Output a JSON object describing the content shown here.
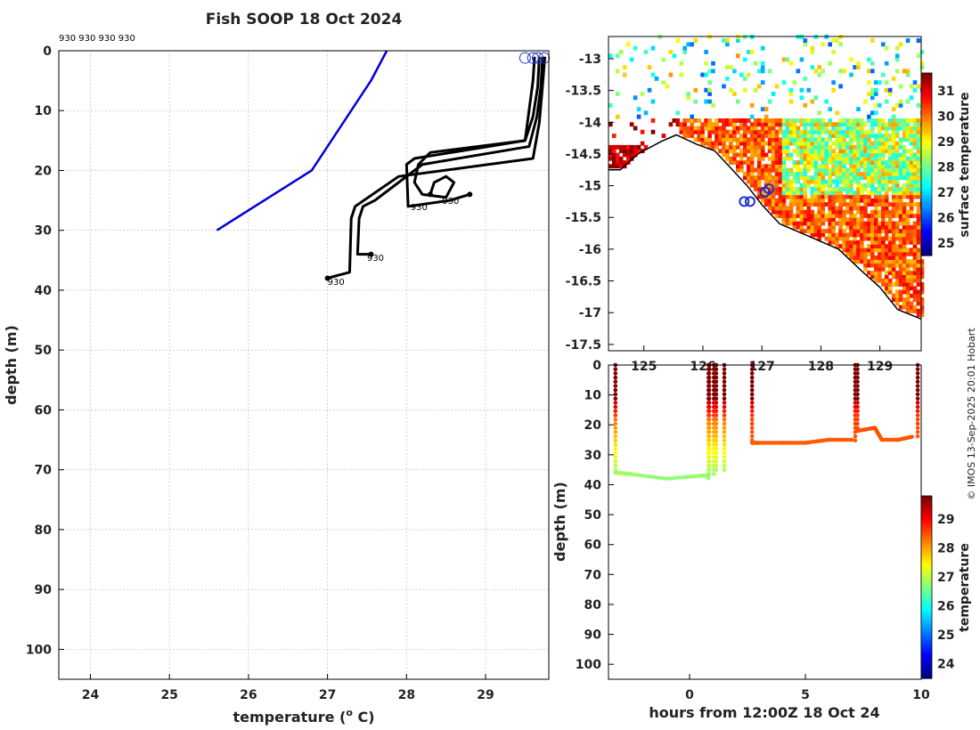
{
  "title": "Fish SOOP 18 Oct 2024",
  "credit": "© IMOS 13-Sep-2025 20:01 Hobart",
  "profile_panel": {
    "profile_ids": "930 930 930 930",
    "xlabel": "temperature (",
    "xlabel_sup": "o",
    "xlabel_end": " C)",
    "ylabel": "depth (m)"
  },
  "map_panel": {
    "colorbar_label": "surface temperature"
  },
  "section_panel": {
    "xlabel": "hours from 12:00Z 18 Oct 24",
    "ylabel": "depth (m)",
    "colorbar_label": "temperature"
  },
  "chart_data": [
    {
      "type": "line",
      "name": "temperature profiles",
      "xlim": [
        23.6,
        29.8
      ],
      "ylim": [
        0,
        105
      ],
      "y_reversed": true,
      "xticks": [
        24,
        25,
        26,
        27,
        28,
        29
      ],
      "yticks": [
        0,
        10,
        20,
        30,
        40,
        50,
        60,
        70,
        80,
        90,
        100
      ],
      "grid": true,
      "series": [
        {
          "name": "climatology",
          "color": "#0000dd",
          "x": [
            27.75,
            27.55,
            27.3,
            26.8,
            25.6
          ],
          "y": [
            0,
            5,
            10,
            20,
            30
          ]
        },
        {
          "name": "profile 1",
          "color": "#000000",
          "x": [
            29.62,
            29.6,
            29.55,
            29.5,
            28.3,
            28.15,
            28.1,
            28.2,
            28.5,
            28.6,
            28.5,
            28.35,
            28.3
          ],
          "y": [
            1,
            5,
            10,
            15,
            17,
            19,
            22,
            24,
            24.5,
            22,
            21,
            22,
            24
          ]
        },
        {
          "name": "profile 2",
          "color": "#000000",
          "x": [
            29.68,
            29.66,
            29.6,
            29.5,
            28.1,
            28.0,
            28.02,
            28.55,
            28.8
          ],
          "y": [
            1,
            6,
            11,
            15,
            18,
            19,
            26,
            25,
            24
          ]
        },
        {
          "name": "profile 3",
          "color": "#000000",
          "x": [
            29.72,
            29.7,
            29.65,
            29.55,
            28.2,
            27.6,
            27.45,
            27.4,
            27.38,
            27.55
          ],
          "y": [
            1,
            6,
            11,
            16,
            19,
            25,
            26,
            28,
            34,
            34
          ]
        },
        {
          "name": "profile 4",
          "color": "#000000",
          "x": [
            29.75,
            29.72,
            29.68,
            29.6,
            27.9,
            27.35,
            27.3,
            27.28,
            27.0
          ],
          "y": [
            1,
            6,
            12,
            18,
            21,
            26,
            28,
            37,
            38
          ]
        }
      ],
      "annotations": [
        {
          "text": "930",
          "x": 28.05,
          "y": 26
        },
        {
          "text": "930",
          "x": 28.45,
          "y": 25
        },
        {
          "text": "930",
          "x": 27.5,
          "y": 34.5
        },
        {
          "text": "930",
          "x": 27.0,
          "y": 38.5
        }
      ]
    },
    {
      "type": "heatmap",
      "name": "surface temperature map",
      "xlim": [
        124.4,
        129.7
      ],
      "ylim": [
        -17.6,
        -12.65
      ],
      "xticks": [
        125,
        126,
        127,
        128,
        129
      ],
      "yticks": [
        -13,
        -13.5,
        -14,
        -14.5,
        -15,
        -15.5,
        -16,
        -16.5,
        -17,
        -17.5
      ],
      "colorbar": {
        "label": "surface temperature",
        "range": [
          24.5,
          31.7
        ],
        "ticks": [
          25,
          26,
          27,
          28,
          29,
          30,
          31
        ]
      },
      "track": [
        [
          126.8,
          -15.25
        ],
        [
          126.7,
          -15.25
        ],
        [
          127.05,
          -15.1
        ],
        [
          127.12,
          -15.05
        ]
      ]
    },
    {
      "type": "scatter",
      "name": "temperature section",
      "xlim": [
        -3.5,
        10
      ],
      "ylim": [
        0,
        105
      ],
      "y_reversed": true,
      "xticks": [
        0,
        5,
        10
      ],
      "yticks": [
        0,
        10,
        20,
        30,
        40,
        50,
        60,
        70,
        80,
        90,
        100
      ],
      "colorbar": {
        "label": "temperature",
        "range": [
          23.5,
          29.8
        ],
        "ticks": [
          24,
          25,
          26,
          27,
          28,
          29
        ]
      },
      "casts": [
        {
          "x": [
            -3.2,
            -3.1,
            -2.5,
            -1.0,
            0.5,
            0.8,
            0.82
          ],
          "depth_bottom": [
            36,
            36,
            36.5,
            38,
            37,
            37,
            0
          ]
        },
        {
          "x": [
            0.85,
            1.05
          ],
          "depth_bottom": [
            37,
            0
          ]
        },
        {
          "x": [
            1.15,
            1.5
          ],
          "depth_bottom": [
            35,
            0
          ]
        },
        {
          "x": [
            2.7,
            3.0,
            4.0,
            5.0,
            6.0,
            7.0,
            7.15
          ],
          "depth_bottom": [
            26,
            26,
            26,
            26,
            25,
            25,
            0
          ]
        },
        {
          "x": [
            7.25,
            8.0,
            8.3,
            9.0,
            9.6,
            9.85
          ],
          "depth_bottom": [
            22,
            21,
            25,
            25,
            24,
            0
          ]
        }
      ]
    }
  ]
}
